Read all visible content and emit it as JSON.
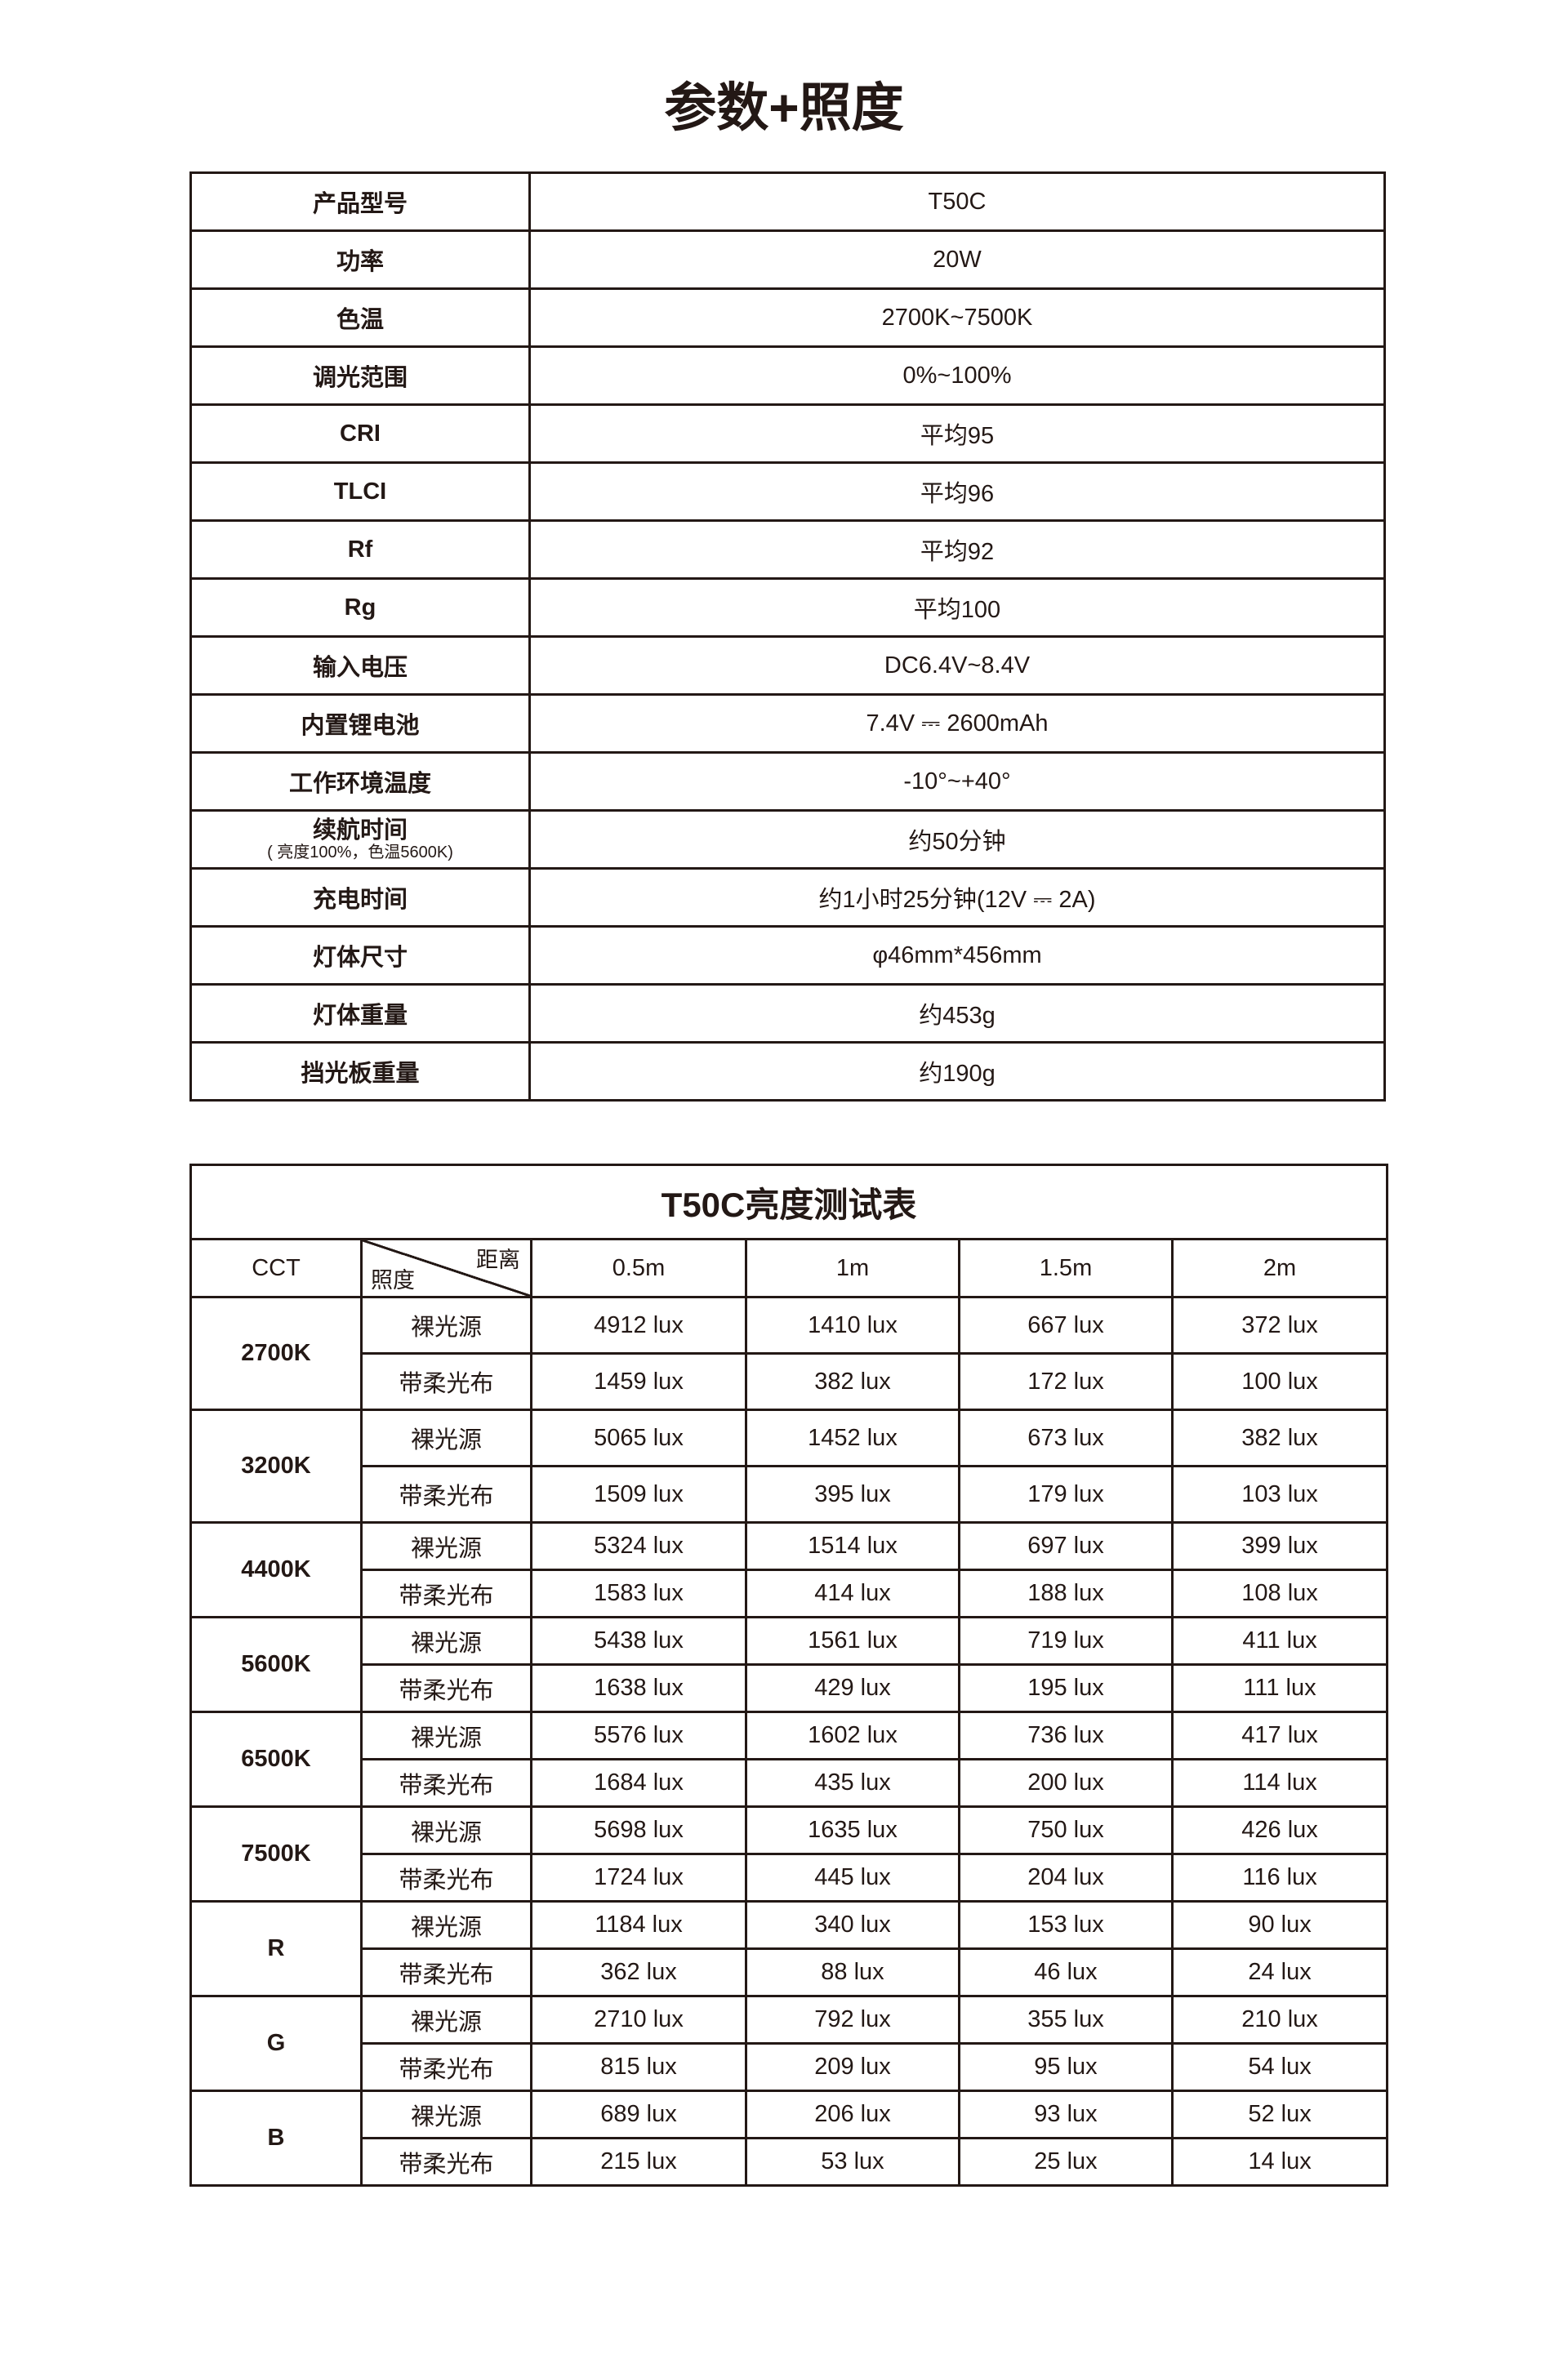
{
  "title": "参数+照度",
  "specs": [
    {
      "label": "产品型号",
      "value": "T50C"
    },
    {
      "label": "功率",
      "value": "20W"
    },
    {
      "label": "色温",
      "value": "2700K~7500K"
    },
    {
      "label": "调光范围",
      "value": "0%~100%"
    },
    {
      "label": "CRI",
      "value": "平均95"
    },
    {
      "label": "TLCI",
      "value": "平均96"
    },
    {
      "label": "Rf",
      "value": "平均92"
    },
    {
      "label": "Rg",
      "value": "平均100"
    },
    {
      "label": "输入电压",
      "value": "DC6.4V~8.4V"
    },
    {
      "label": "内置锂电池",
      "value": "7.4V ⎓ 2600mAh"
    },
    {
      "label": "工作环境温度",
      "value": "-10°~+40°"
    },
    {
      "label": "续航时间",
      "note": "( 亮度100%，色温5600K)",
      "value": "约50分钟"
    },
    {
      "label": "充电时间",
      "value": "约1小时25分钟(12V ⎓ 2A)"
    },
    {
      "label": "灯体尺寸",
      "value": "φ46mm*456mm"
    },
    {
      "label": "灯体重量",
      "value": "约453g"
    },
    {
      "label": "挡光板重量",
      "value": "约190g"
    }
  ],
  "lux_table": {
    "title": "T50C亮度测试表",
    "cct_header": "CCT",
    "diag_top": "距离",
    "diag_bottom": "照度",
    "distances": [
      "0.5m",
      "1m",
      "1.5m",
      "2m"
    ],
    "groups": [
      {
        "cct": "2700K",
        "rows": [
          {
            "type": "裸光源",
            "values": [
              "4912 lux",
              "1410 lux",
              "667 lux",
              "372 lux"
            ]
          },
          {
            "type": "带柔光布",
            "values": [
              "1459 lux",
              "382 lux",
              "172 lux",
              "100 lux"
            ]
          }
        ]
      },
      {
        "cct": "3200K",
        "rows": [
          {
            "type": "裸光源",
            "values": [
              "5065 lux",
              "1452 lux",
              "673 lux",
              "382 lux"
            ]
          },
          {
            "type": "带柔光布",
            "values": [
              "1509 lux",
              "395 lux",
              "179 lux",
              "103 lux"
            ]
          }
        ]
      },
      {
        "cct": "4400K",
        "rows": [
          {
            "type": "裸光源",
            "values": [
              "5324 lux",
              "1514 lux",
              "697 lux",
              "399 lux"
            ]
          },
          {
            "type": "带柔光布",
            "values": [
              "1583 lux",
              "414 lux",
              "188 lux",
              "108 lux"
            ]
          }
        ]
      },
      {
        "cct": "5600K",
        "rows": [
          {
            "type": "裸光源",
            "values": [
              "5438 lux",
              "1561 lux",
              "719 lux",
              "411 lux"
            ]
          },
          {
            "type": "带柔光布",
            "values": [
              "1638 lux",
              "429 lux",
              "195 lux",
              "111 lux"
            ]
          }
        ]
      },
      {
        "cct": "6500K",
        "rows": [
          {
            "type": "裸光源",
            "values": [
              "5576 lux",
              "1602 lux",
              "736 lux",
              "417 lux"
            ]
          },
          {
            "type": "带柔光布",
            "values": [
              "1684 lux",
              "435 lux",
              "200 lux",
              "114 lux"
            ]
          }
        ]
      },
      {
        "cct": "7500K",
        "rows": [
          {
            "type": "裸光源",
            "values": [
              "5698 lux",
              "1635 lux",
              "750 lux",
              "426 lux"
            ]
          },
          {
            "type": "带柔光布",
            "values": [
              "1724 lux",
              "445 lux",
              "204 lux",
              "116 lux"
            ]
          }
        ]
      },
      {
        "cct": "R",
        "rows": [
          {
            "type": "裸光源",
            "values": [
              "1184 lux",
              "340 lux",
              "153 lux",
              "90 lux"
            ]
          },
          {
            "type": "带柔光布",
            "values": [
              "362 lux",
              "88 lux",
              "46 lux",
              "24 lux"
            ]
          }
        ]
      },
      {
        "cct": "G",
        "rows": [
          {
            "type": "裸光源",
            "values": [
              "2710 lux",
              "792 lux",
              "355 lux",
              "210 lux"
            ]
          },
          {
            "type": "带柔光布",
            "values": [
              "815 lux",
              "209 lux",
              "95 lux",
              "54 lux"
            ]
          }
        ]
      },
      {
        "cct": "B",
        "rows": [
          {
            "type": "裸光源",
            "values": [
              "689 lux",
              "206 lux",
              "93 lux",
              "52 lux"
            ]
          },
          {
            "type": "带柔光布",
            "values": [
              "215 lux",
              "53 lux",
              "25 lux",
              "14 lux"
            ]
          }
        ]
      }
    ]
  }
}
